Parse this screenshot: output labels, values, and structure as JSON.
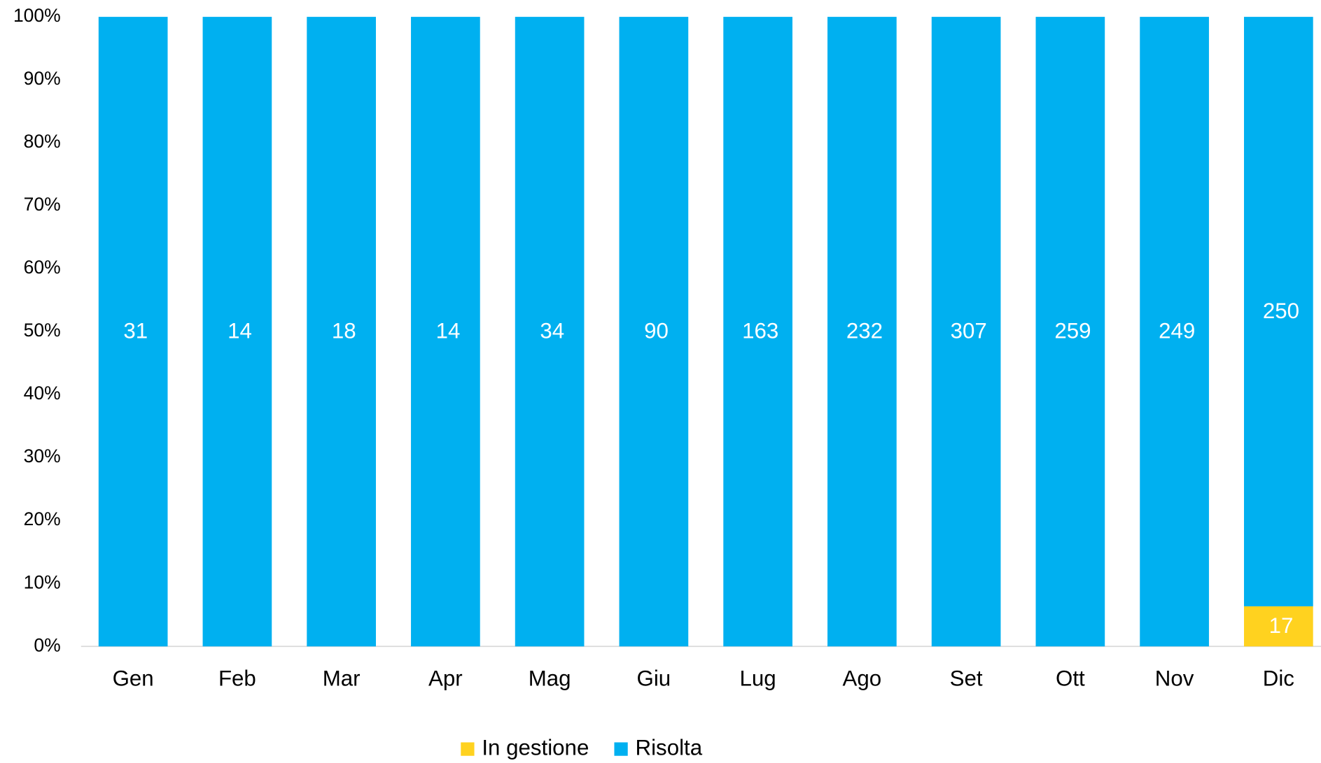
{
  "chart_data": {
    "type": "stacked_percent_bar",
    "categories": [
      "Gen",
      "Feb",
      "Mar",
      "Apr",
      "Mag",
      "Giu",
      "Lug",
      "Ago",
      "Set",
      "Ott",
      "Nov",
      "Dic"
    ],
    "series": [
      {
        "name": "In gestione",
        "color": "#ffd21f",
        "values": [
          null,
          null,
          null,
          null,
          null,
          null,
          null,
          null,
          null,
          null,
          null,
          17
        ]
      },
      {
        "name": "Risolta",
        "color": "#00b0f0",
        "values": [
          31,
          14,
          18,
          14,
          34,
          90,
          163,
          232,
          307,
          259,
          249,
          250
        ]
      }
    ],
    "ylim": [
      0,
      100
    ],
    "yticks": [
      {
        "value": 0,
        "label": "0%"
      },
      {
        "value": 10,
        "label": "10%"
      },
      {
        "value": 20,
        "label": "20%"
      },
      {
        "value": 30,
        "label": "30%"
      },
      {
        "value": 40,
        "label": "40%"
      },
      {
        "value": 50,
        "label": "50%"
      },
      {
        "value": 60,
        "label": "60%"
      },
      {
        "value": 70,
        "label": "70%"
      },
      {
        "value": 80,
        "label": "80%"
      },
      {
        "value": 90,
        "label": "90%"
      },
      {
        "value": 100,
        "label": "100%"
      }
    ],
    "legend": "bottom"
  }
}
